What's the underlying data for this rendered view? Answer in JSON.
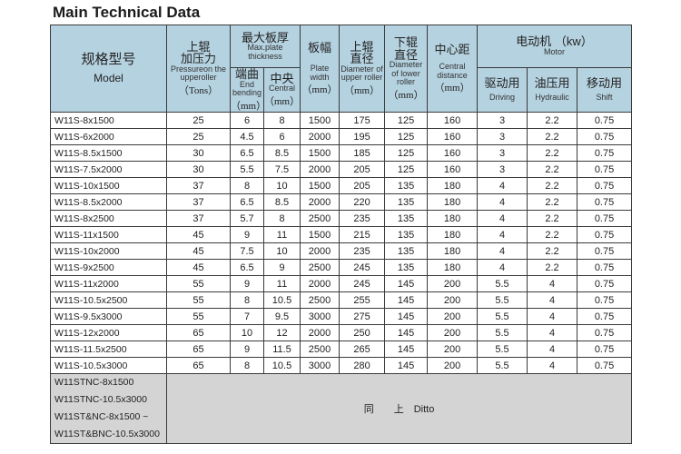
{
  "title": "Main Technical Data",
  "headers": {
    "model_cn": "规格型号",
    "model_en": "Model",
    "pressure_cn1": "上辊",
    "pressure_cn2": "加压力",
    "pressure_en": "Pressureon the upperoller",
    "pressure_unit": "（Tons）",
    "thickness_cn": "最大板厚",
    "thickness_en": "Max.plate thickness",
    "end_cn": "端曲",
    "end_en": "End bending",
    "end_unit": "（mm）",
    "central_cn": "中央",
    "central_en": "Central",
    "central_unit": "（mm）",
    "width_cn": "板幅",
    "width_en": "Plate width",
    "width_unit": "（mm）",
    "upper_cn1": "上辊",
    "upper_cn2": "直径",
    "upper_en": "Diameter of upper roller",
    "upper_unit": "（mm）",
    "lower_cn1": "下辊",
    "lower_cn2": "直径",
    "lower_en": "Diameter of lower roller",
    "lower_unit": "（mm）",
    "dist_cn": "中心距",
    "dist_en": "Central distance",
    "dist_unit": "（mm）",
    "motor_cn": "电动机 （kw）",
    "motor_en": "Motor",
    "driving_cn": "驱动用",
    "driving_en": "Driving",
    "hydraulic_cn": "油压用",
    "hydraulic_en": "Hydraulic",
    "shift_cn": "移动用",
    "shift_en": "Shift"
  },
  "rows": [
    [
      "W11S-8x1500",
      "25",
      "6",
      "8",
      "1500",
      "175",
      "125",
      "160",
      "3",
      "2.2",
      "0.75"
    ],
    [
      "W11S-6x2000",
      "25",
      "4.5",
      "6",
      "2000",
      "195",
      "125",
      "160",
      "3",
      "2.2",
      "0.75"
    ],
    [
      "W11S-8.5x1500",
      "30",
      "6.5",
      "8.5",
      "1500",
      "185",
      "125",
      "160",
      "3",
      "2.2",
      "0.75"
    ],
    [
      "W11S-7.5x2000",
      "30",
      "5.5",
      "7.5",
      "2000",
      "205",
      "125",
      "160",
      "3",
      "2.2",
      "0.75"
    ],
    [
      "W11S-10x1500",
      "37",
      "8",
      "10",
      "1500",
      "205",
      "135",
      "180",
      "4",
      "2.2",
      "0.75"
    ],
    [
      "W11S-8.5x2000",
      "37",
      "6.5",
      "8.5",
      "2000",
      "220",
      "135",
      "180",
      "4",
      "2.2",
      "0.75"
    ],
    [
      "W11S-8x2500",
      "37",
      "5.7",
      "8",
      "2500",
      "235",
      "135",
      "180",
      "4",
      "2.2",
      "0.75"
    ],
    [
      "W11S-11x1500",
      "45",
      "9",
      "11",
      "1500",
      "215",
      "135",
      "180",
      "4",
      "2.2",
      "0.75"
    ],
    [
      "W11S-10x2000",
      "45",
      "7.5",
      "10",
      "2000",
      "235",
      "135",
      "180",
      "4",
      "2.2",
      "0.75"
    ],
    [
      "W11S-9x2500",
      "45",
      "6.5",
      "9",
      "2500",
      "245",
      "135",
      "180",
      "4",
      "2.2",
      "0.75"
    ],
    [
      "W11S-11x2000",
      "55",
      "9",
      "11",
      "2000",
      "245",
      "145",
      "200",
      "5.5",
      "4",
      "0.75"
    ],
    [
      "W11S-10.5x2500",
      "55",
      "8",
      "10.5",
      "2500",
      "255",
      "145",
      "200",
      "5.5",
      "4",
      "0.75"
    ],
    [
      "W11S-9.5x3000",
      "55",
      "7",
      "9.5",
      "3000",
      "275",
      "145",
      "200",
      "5.5",
      "4",
      "0.75"
    ],
    [
      "W11S-12x2000",
      "65",
      "10",
      "12",
      "2000",
      "250",
      "145",
      "200",
      "5.5",
      "4",
      "0.75"
    ],
    [
      "W11S-11.5x2500",
      "65",
      "9",
      "11.5",
      "2500",
      "265",
      "145",
      "200",
      "5.5",
      "4",
      "0.75"
    ],
    [
      "W11S-10.5x3000",
      "65",
      "8",
      "10.5",
      "3000",
      "280",
      "145",
      "200",
      "5.5",
      "4",
      "0.75"
    ]
  ],
  "ditto_models": [
    "W11STNC-8x1500",
    "W11STNC-10.5x3000",
    "W11ST&NC-8x1500 ~",
    "W11ST&BNC-10.5x3000"
  ],
  "ditto_text": "同　　上　Ditto"
}
